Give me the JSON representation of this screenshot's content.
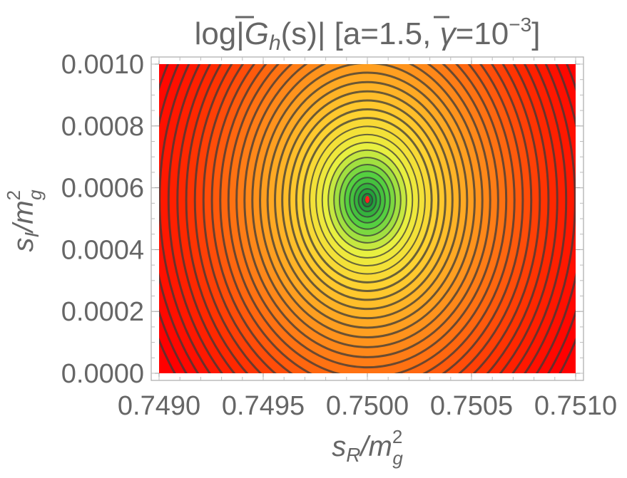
{
  "chart_data": {
    "type": "contour",
    "title": {
      "log": "log|",
      "func": "G",
      "sub": "h",
      "arg": "(s)| [a=1.5, ",
      "gamma": "γ",
      "eq": "=10",
      "exp": "−3",
      "close": "]"
    },
    "xlabel": {
      "base": "s",
      "sub": "R",
      "slash": "/m",
      "sup": "2",
      "sub2": "g"
    },
    "ylabel": {
      "base": "s",
      "sub": "I",
      "slash": "/m",
      "sup": "2",
      "sub2": "g"
    },
    "xlim": [
      0.749,
      0.751
    ],
    "ylim": [
      0.0,
      0.001
    ],
    "x_ticks": [
      "0.7490",
      "0.7495",
      "0.7500",
      "0.7505",
      "0.7510"
    ],
    "x_tick_values": [
      0.749,
      0.7495,
      0.75,
      0.7505,
      0.751
    ],
    "y_ticks": [
      "0.0000",
      "0.0002",
      "0.0004",
      "0.0006",
      "0.0008",
      "0.0010"
    ],
    "y_tick_values": [
      0.0,
      0.0002,
      0.0004,
      0.0006,
      0.0008,
      0.001
    ],
    "center": {
      "x": 0.75,
      "y": 0.00056
    },
    "colormap": [
      "#2a3a3a",
      "#1a9a3a",
      "#55d040",
      "#e8f040",
      "#ffd030",
      "#ffa020",
      "#ff6a10",
      "#ff2a00",
      "#ff0000"
    ],
    "grid": false,
    "frame": true
  }
}
